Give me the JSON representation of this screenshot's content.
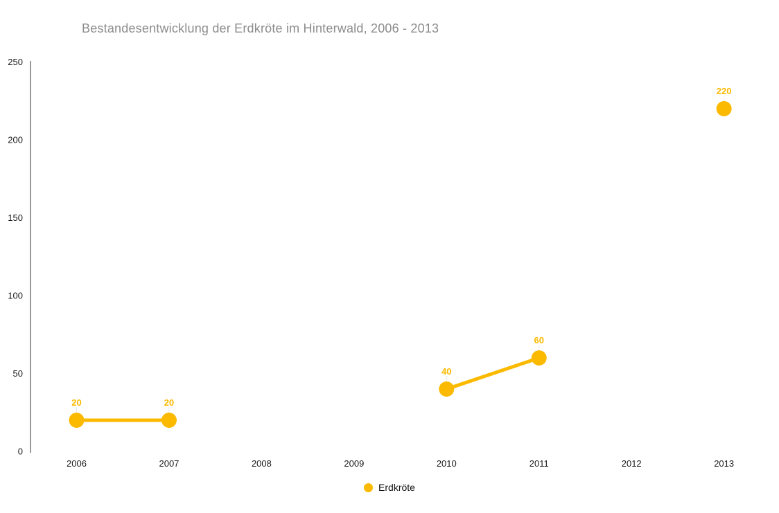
{
  "title": "Bestandesentwicklung der Erdkröte im Hinterwald, 2006 - 2013",
  "colors": {
    "series": "#FBBA00",
    "title": "#8C8C8C",
    "axis": "#333333",
    "tick_label": "#1A1A1A",
    "label_connector": "#E8E8E8"
  },
  "chart_data": {
    "type": "line",
    "title": "Bestandesentwicklung der Erdkröte im Hinterwald, 2006 - 2013",
    "categories": [
      "2006",
      "2007",
      "2008",
      "2009",
      "2010",
      "2011",
      "2012",
      "2013"
    ],
    "series": [
      {
        "name": "Erdkröte",
        "color": "#FBBA00",
        "values": [
          20,
          20,
          null,
          null,
          40,
          60,
          null,
          220
        ]
      }
    ],
    "xlabel": "",
    "ylabel": "",
    "ylim": [
      0,
      250
    ],
    "yticks": [
      0,
      50,
      100,
      150,
      200,
      250
    ],
    "grid": false,
    "point_labels": true,
    "legend_position": "bottom"
  },
  "legend": {
    "items": [
      {
        "label": "Erdkröte",
        "color": "#FBBA00"
      }
    ]
  }
}
